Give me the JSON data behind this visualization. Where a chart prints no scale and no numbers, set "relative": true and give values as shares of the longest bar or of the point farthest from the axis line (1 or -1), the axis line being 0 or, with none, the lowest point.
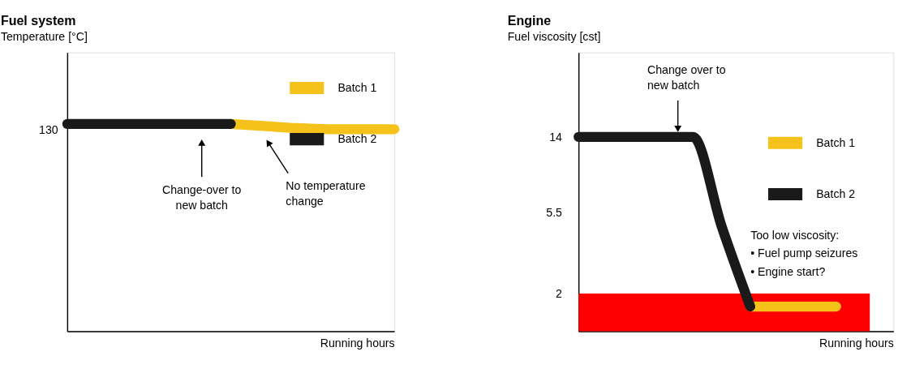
{
  "chart_data": [
    {
      "type": "line",
      "title": "Fuel system",
      "ylabel": "Temperature [°C]",
      "xlabel": "Running hours",
      "relative": true,
      "legend": "top right",
      "line_style": "solid",
      "marker": "none",
      "categories": [
        null,
        null,
        null,
        null,
        null,
        null,
        null,
        null,
        null,
        null,
        null
      ],
      "series": [
        {
          "name": "Batch 1",
          "color": "#f5c21b",
          "values": [
            null,
            null,
            null,
            null,
            null,
            1,
            0.99,
            0.98,
            0.975,
            0.975,
            0.975
          ]
        },
        {
          "name": "Batch 2",
          "color": "#1a1a1a",
          "values": [
            1,
            1,
            1,
            1,
            1,
            1,
            null,
            null,
            null,
            null,
            null
          ]
        }
      ],
      "annotations": [
        "130",
        "Change-over to\nnew batch",
        "No temperature\nchange"
      ]
    },
    {
      "type": "line",
      "title": "Engine",
      "ylabel": "Fuel viscosity [cst]",
      "xlabel": "Running hours",
      "log": true,
      "ylim": [
        1.25,
        40
      ],
      "yticks": [
        2,
        5.5,
        14
      ],
      "tick_labels": "y",
      "legend": "right",
      "line_style": "solid",
      "marker": "none",
      "categories": [
        null,
        null,
        null,
        null,
        null,
        null,
        null,
        null,
        null,
        null,
        null,
        null
      ],
      "series": [
        {
          "name": "Batch 1",
          "color": "#f5c21b",
          "values": [
            null,
            null,
            null,
            null,
            null,
            null,
            1.7,
            1.7,
            1.7,
            1.7,
            null,
            null
          ]
        },
        {
          "name": "Batch 2",
          "color": "#1a1a1a",
          "values": [
            14,
            14,
            14,
            14,
            14,
            4.6,
            1.7,
            null,
            null,
            null,
            null,
            null
          ]
        }
      ],
      "bands": [
        {
          "axis": "y",
          "from": 1.25,
          "to": 2,
          "color": "#ff0000",
          "label": "Too low viscosity:\n• Fuel pump seizures\n• Engine start?"
        }
      ],
      "annotations": [
        "Change over to\nnew batch"
      ]
    }
  ]
}
